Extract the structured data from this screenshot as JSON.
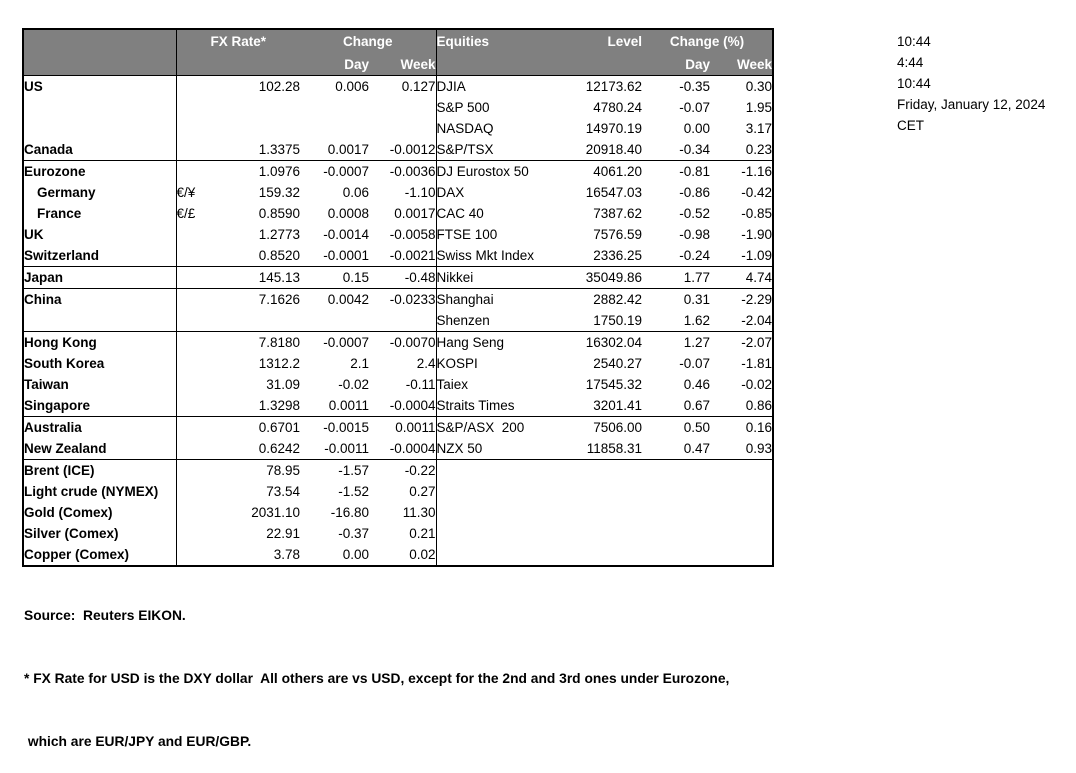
{
  "colors": {
    "header_bg": "#808080",
    "header_text": "#ffffff",
    "border": "#000000",
    "text": "#000000",
    "background": "#ffffff"
  },
  "table": {
    "header": {
      "fx_rate": "FX Rate*",
      "change": "Change",
      "day": "Day",
      "week": "Week",
      "equities": "Equities",
      "level": "Level",
      "change_pct": "Change (%)",
      "eq_day": "Day",
      "eq_week": "Week"
    },
    "rows": [
      {
        "name": "US",
        "pair": "",
        "rate": "102.28",
        "day": "0.006",
        "week": "0.127",
        "eq_name": "DJIA",
        "level": "12173.62",
        "eq_day": "-0.35",
        "eq_week": "0.30",
        "group_start": false,
        "indent": false
      },
      {
        "name": "",
        "pair": "",
        "rate": "",
        "day": "",
        "week": "",
        "eq_name": "S&P 500",
        "level": "4780.24",
        "eq_day": "-0.07",
        "eq_week": "1.95",
        "group_start": false,
        "indent": false
      },
      {
        "name": "",
        "pair": "",
        "rate": "",
        "day": "",
        "week": "",
        "eq_name": "NASDAQ",
        "level": "14970.19",
        "eq_day": "0.00",
        "eq_week": "3.17",
        "group_start": false,
        "indent": false
      },
      {
        "name": "Canada",
        "pair": "",
        "rate": "1.3375",
        "day": "0.0017",
        "week": "-0.0012",
        "eq_name": "S&P/TSX",
        "level": "20918.40",
        "eq_day": "-0.34",
        "eq_week": "0.23",
        "group_start": false,
        "indent": false
      },
      {
        "name": "Eurozone",
        "pair": "",
        "rate": "1.0976",
        "day": "-0.0007",
        "week": "-0.0036",
        "eq_name": "DJ Eurostox 50",
        "level": "4061.20",
        "eq_day": "-0.81",
        "eq_week": "-1.16",
        "group_start": true,
        "indent": false
      },
      {
        "name": "Germany",
        "pair": "€/¥",
        "rate": "159.32",
        "day": "0.06",
        "week": "-1.10",
        "eq_name": "DAX",
        "level": "16547.03",
        "eq_day": "-0.86",
        "eq_week": "-0.42",
        "group_start": false,
        "indent": true
      },
      {
        "name": "France",
        "pair": "€/£",
        "rate": "0.8590",
        "day": "0.0008",
        "week": "0.0017",
        "eq_name": "CAC 40",
        "level": "7387.62",
        "eq_day": "-0.52",
        "eq_week": "-0.85",
        "group_start": false,
        "indent": true
      },
      {
        "name": "UK",
        "pair": "",
        "rate": "1.2773",
        "day": "-0.0014",
        "week": "-0.0058",
        "eq_name": "FTSE 100",
        "level": "7576.59",
        "eq_day": "-0.98",
        "eq_week": "-1.90",
        "group_start": false,
        "indent": false
      },
      {
        "name": "Switzerland",
        "pair": "",
        "rate": "0.8520",
        "day": "-0.0001",
        "week": "-0.0021",
        "eq_name": "Swiss Mkt Index",
        "level": "2336.25",
        "eq_day": "-0.24",
        "eq_week": "-1.09",
        "group_start": false,
        "indent": false
      },
      {
        "name": "Japan",
        "pair": "",
        "rate": "145.13",
        "day": "0.15",
        "week": "-0.48",
        "eq_name": "Nikkei",
        "level": "35049.86",
        "eq_day": "1.77",
        "eq_week": "4.74",
        "group_start": true,
        "indent": false
      },
      {
        "name": "China",
        "pair": "",
        "rate": "7.1626",
        "day": "0.0042",
        "week": "-0.0233",
        "eq_name": "Shanghai",
        "level": "2882.42",
        "eq_day": "0.31",
        "eq_week": "-2.29",
        "group_start": true,
        "indent": false
      },
      {
        "name": "",
        "pair": "",
        "rate": "",
        "day": "",
        "week": "",
        "eq_name": "Shenzen",
        "level": "1750.19",
        "eq_day": "1.62",
        "eq_week": "-2.04",
        "group_start": false,
        "indent": false
      },
      {
        "name": "Hong Kong",
        "pair": "",
        "rate": "7.8180",
        "day": "-0.0007",
        "week": "-0.0070",
        "eq_name": "Hang Seng",
        "level": "16302.04",
        "eq_day": "1.27",
        "eq_week": "-2.07",
        "group_start": true,
        "indent": false
      },
      {
        "name": "South Korea",
        "pair": "",
        "rate": "1312.2",
        "day": "2.1",
        "week": "2.4",
        "eq_name": "KOSPI",
        "level": "2540.27",
        "eq_day": "-0.07",
        "eq_week": "-1.81",
        "group_start": false,
        "indent": false
      },
      {
        "name": "Taiwan",
        "pair": "",
        "rate": "31.09",
        "day": "-0.02",
        "week": "-0.11",
        "eq_name": "Taiex",
        "level": "17545.32",
        "eq_day": "0.46",
        "eq_week": "-0.02",
        "group_start": false,
        "indent": false
      },
      {
        "name": "Singapore",
        "pair": "",
        "rate": "1.3298",
        "day": "0.0011",
        "week": "-0.0004",
        "eq_name": "Straits Times",
        "level": "3201.41",
        "eq_day": "0.67",
        "eq_week": "0.86",
        "group_start": false,
        "indent": false
      },
      {
        "name": "Australia",
        "pair": "",
        "rate": "0.6701",
        "day": "-0.0015",
        "week": "0.0011",
        "eq_name": "S&P/ASX  200",
        "level": "7506.00",
        "eq_day": "0.50",
        "eq_week": "0.16",
        "group_start": true,
        "indent": false
      },
      {
        "name": "New Zealand",
        "pair": "",
        "rate": "0.6242",
        "day": "-0.0011",
        "week": "-0.0004",
        "eq_name": "NZX 50",
        "level": "11858.31",
        "eq_day": "0.47",
        "eq_week": "0.93",
        "group_start": false,
        "indent": false
      },
      {
        "name": "Brent (ICE)",
        "pair": "",
        "rate": "78.95",
        "day": "-1.57",
        "week": "-0.22",
        "eq_name": "",
        "level": "",
        "eq_day": "",
        "eq_week": "",
        "group_start": true,
        "indent": false
      },
      {
        "name": "Light crude (NYMEX)",
        "pair": "",
        "rate": "73.54",
        "day": "-1.52",
        "week": "0.27",
        "eq_name": "",
        "level": "",
        "eq_day": "",
        "eq_week": "",
        "group_start": false,
        "indent": false
      },
      {
        "name": "Gold (Comex)",
        "pair": "",
        "rate": "2031.10",
        "day": "-16.80",
        "week": "11.30",
        "eq_name": "",
        "level": "",
        "eq_day": "",
        "eq_week": "",
        "group_start": false,
        "indent": false
      },
      {
        "name": "Silver (Comex)",
        "pair": "",
        "rate": "22.91",
        "day": "-0.37",
        "week": "0.21",
        "eq_name": "",
        "level": "",
        "eq_day": "",
        "eq_week": "",
        "group_start": false,
        "indent": false
      },
      {
        "name": "Copper (Comex)",
        "pair": "",
        "rate": "3.78",
        "day": "0.00",
        "week": "0.02",
        "eq_name": "",
        "level": "",
        "eq_day": "",
        "eq_week": "",
        "group_start": false,
        "indent": false
      }
    ]
  },
  "timestamps": [
    "10:44",
    "4:44",
    "10:44",
    "Friday, January 12, 2024",
    "CET"
  ],
  "footer": {
    "source": "Source:  Reuters EIKON.",
    "note1": "* FX Rate for USD is the DXY dollar  All others are vs USD, except for the 2nd and 3rd ones under Eurozone,",
    "note2": " which are EUR/JPY and EUR/GBP."
  }
}
